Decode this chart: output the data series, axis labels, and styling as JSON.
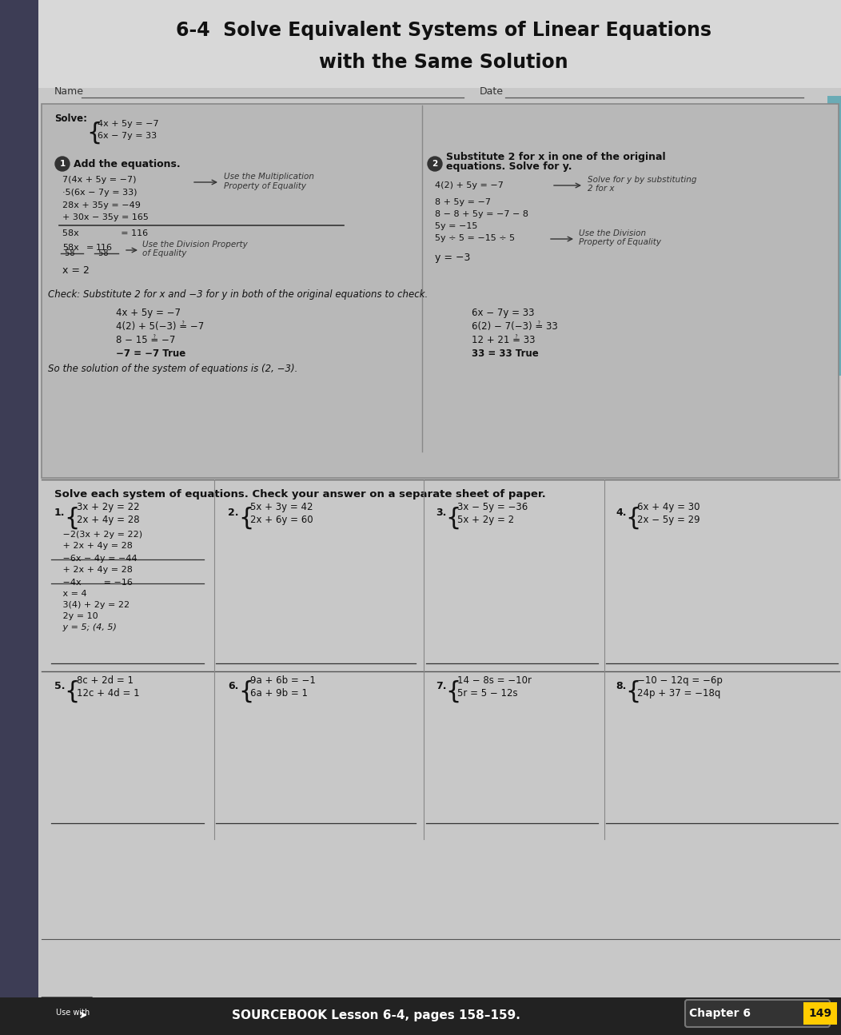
{
  "title_line1": "6-4  Solve Equivalent Systems of Linear Equations",
  "title_line2": "with the Same Solution",
  "bg_outer": "#7a7a7a",
  "bg_page": "#c8c8c8",
  "bg_example": "#bebebe",
  "footer_bg": "#2a2a2a",
  "footer_text": "SOURCEBOOK Lesson 6-4, pages 158–159.",
  "chapter_text": "Chapter 6",
  "page_num": "149",
  "name_label": "Name",
  "date_label": "Date",
  "solve_label": "Solve:",
  "check_header": "Check: Substitute 2 for x and −3 for y in both of the original equations to check.",
  "solution_line": "So the solution of the system of equations is (2, −3).",
  "practice_header": "Solve each system of equations. Check your answer on a separate sheet of paper."
}
